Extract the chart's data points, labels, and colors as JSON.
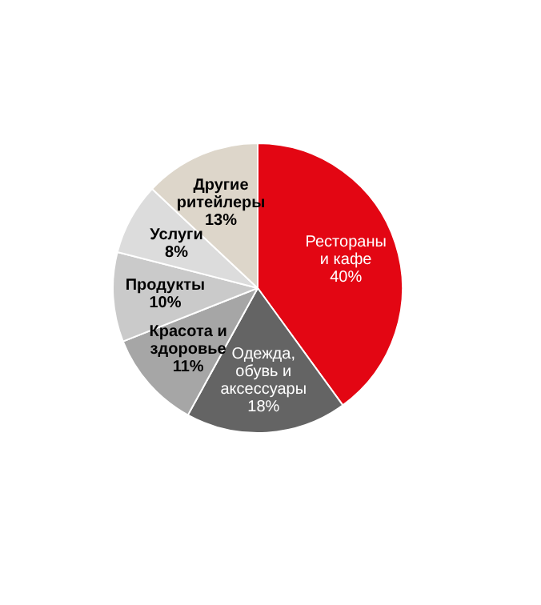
{
  "chart_data": {
    "type": "pie",
    "categories": [
      "Рестораны и кафе",
      "Одежда, обувь и аксессуары",
      "Красота и здоровье",
      "Продукты",
      "Услуги",
      "Другие ритейлеры"
    ],
    "values": [
      40,
      18,
      11,
      10,
      8,
      13
    ],
    "value_labels": [
      "40%",
      "18%",
      "11%",
      "10%",
      "8%",
      "13%"
    ],
    "colors": [
      "#e30613",
      "#646464",
      "#a6a6a6",
      "#cacaca",
      "#dcdcdc",
      "#ddd6ca"
    ],
    "legend": false
  }
}
